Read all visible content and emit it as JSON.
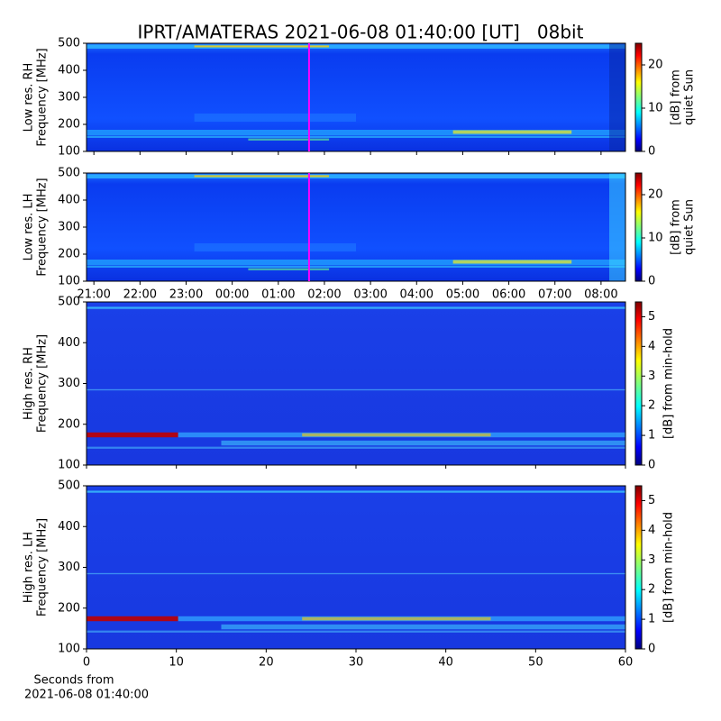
{
  "chart_data": [
    {
      "type": "spectrogram",
      "title": "IPRT/AMATERAS 2021-06-08 01:40:00 [UT]   08bit",
      "y_label": [
        "Low res. RH",
        "Frequency [MHz]"
      ],
      "ylim": [
        100,
        500
      ],
      "yticks": [
        100,
        200,
        300,
        400,
        500
      ],
      "xlim": [
        -3.16,
        8.53
      ],
      "xticks": [
        -3,
        -2,
        -1,
        0,
        1,
        2,
        3,
        4,
        5,
        6,
        7,
        8
      ],
      "xtick_labels_shown": false,
      "cursor": {
        "x": 1.667,
        "color": "#ff00ff"
      },
      "colorbar": {
        "label": [
          "[dB] from",
          "quiet Sun"
        ],
        "clim": [
          0,
          25
        ],
        "ticks": [
          0,
          10,
          20
        ],
        "colormap": "jet"
      }
    },
    {
      "type": "spectrogram",
      "y_label": [
        "Low res. LH",
        "Frequency [MHz]"
      ],
      "ylim": [
        100,
        500
      ],
      "yticks": [
        100,
        200,
        300,
        400,
        500
      ],
      "xlim": [
        -3.16,
        8.53
      ],
      "xticks": [
        {
          "value": -3,
          "label": "21:00"
        },
        {
          "value": -2,
          "label": "22:00"
        },
        {
          "value": -1,
          "label": "23:00"
        },
        {
          "value": 0,
          "label": "00:00"
        },
        {
          "value": 1,
          "label": "01:00"
        },
        {
          "value": 2,
          "label": "02:00"
        },
        {
          "value": 3,
          "label": "03:00"
        },
        {
          "value": 4,
          "label": "04:00"
        },
        {
          "value": 5,
          "label": "05:00"
        },
        {
          "value": 6,
          "label": "06:00"
        },
        {
          "value": 7,
          "label": "07:00"
        },
        {
          "value": 8,
          "label": "08:00"
        }
      ],
      "xtick_labels_shown": true,
      "cursor": {
        "x": 1.667,
        "color": "#ff00ff"
      },
      "colorbar": {
        "label": [
          "[dB] from",
          "quiet Sun"
        ],
        "clim": [
          0,
          25
        ],
        "ticks": [
          0,
          10,
          20
        ],
        "colormap": "jet"
      }
    },
    {
      "type": "spectrogram",
      "y_label": [
        "High res. RH",
        "Frequency [MHz]"
      ],
      "ylim": [
        100,
        500
      ],
      "yticks": [
        100,
        200,
        300,
        400,
        500
      ],
      "xlim": [
        0,
        60
      ],
      "xticks": [
        0,
        10,
        20,
        30,
        40,
        50,
        60
      ],
      "xtick_labels_shown": false,
      "colorbar": {
        "label": [
          "[dB] from min-hold"
        ],
        "clim": [
          0,
          5.5
        ],
        "ticks": [
          0,
          1,
          2,
          3,
          4,
          5
        ],
        "colormap": "jet"
      }
    },
    {
      "type": "spectrogram",
      "y_label": [
        "High res. LH",
        "Frequency [MHz]"
      ],
      "ylim": [
        100,
        500
      ],
      "yticks": [
        100,
        200,
        300,
        400,
        500
      ],
      "xlim": [
        0,
        60
      ],
      "xticks": [
        0,
        10,
        20,
        30,
        40,
        50,
        60
      ],
      "xtick_labels_shown": true,
      "x_label": [
        "Seconds from",
        "2021-06-08 01:40:00"
      ],
      "colorbar": {
        "label": [
          "[dB] from min-hold"
        ],
        "clim": [
          0,
          5.5
        ],
        "ticks": [
          0,
          1,
          2,
          3,
          4,
          5
        ],
        "colormap": "jet"
      }
    }
  ]
}
